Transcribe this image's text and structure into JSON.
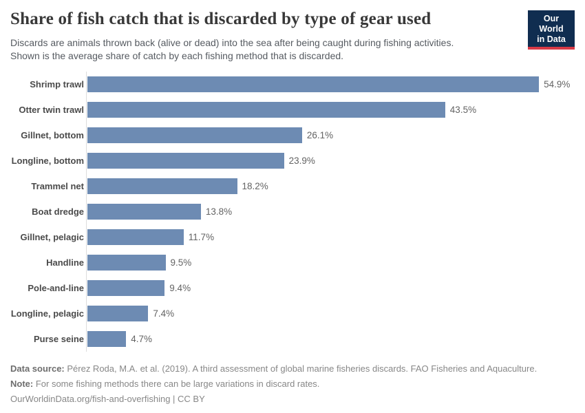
{
  "header": {
    "title": "Share of fish catch that is discarded by type of gear used",
    "subtitle_line1": "Discards are animals thrown back (alive or dead) into the sea after being caught during fishing activities.",
    "subtitle_line2": "Shown is the average share of catch by each fishing method that is discarded.",
    "logo": {
      "line1": "Our World",
      "line2": "in Data"
    }
  },
  "chart_data": {
    "type": "bar",
    "orientation": "horizontal",
    "title": "Share of fish catch that is discarded by type of gear used",
    "categories": [
      "Shrimp trawl",
      "Otter twin trawl",
      "Gillnet, bottom",
      "Longline, bottom",
      "Trammel net",
      "Boat dredge",
      "Gillnet, pelagic",
      "Handline",
      "Pole-and-line",
      "Longline, pelagic",
      "Purse seine"
    ],
    "values": [
      54.9,
      43.5,
      26.1,
      23.9,
      18.2,
      13.8,
      11.7,
      9.5,
      9.4,
      7.4,
      4.7
    ],
    "value_labels": [
      "54.9%",
      "43.5%",
      "26.1%",
      "23.9%",
      "18.2%",
      "13.8%",
      "11.7%",
      "9.5%",
      "9.4%",
      "7.4%",
      "4.7%"
    ],
    "unit": "%",
    "xlabel": "",
    "ylabel": "",
    "xlim": [
      0,
      55.4
    ],
    "grid": false,
    "legend": false,
    "bar_color": "#6d8bb3"
  },
  "colors": {
    "bar": "#6d8bb3",
    "logo_background": "#102d50",
    "logo_accent_red": "#d93a46",
    "axis_line": "#dcdcdc"
  },
  "footer": {
    "data_source_label": "Data source:",
    "data_source_text": " Pérez Roda, M.A. et al. (2019). A third assessment of global marine fisheries discards. FAO Fisheries and Aquaculture.",
    "note_label": "Note:",
    "note_text": " For some fishing methods there can be large variations in discard rates.",
    "license_line": "OurWorldinData.org/fish-and-overfishing | CC BY"
  }
}
